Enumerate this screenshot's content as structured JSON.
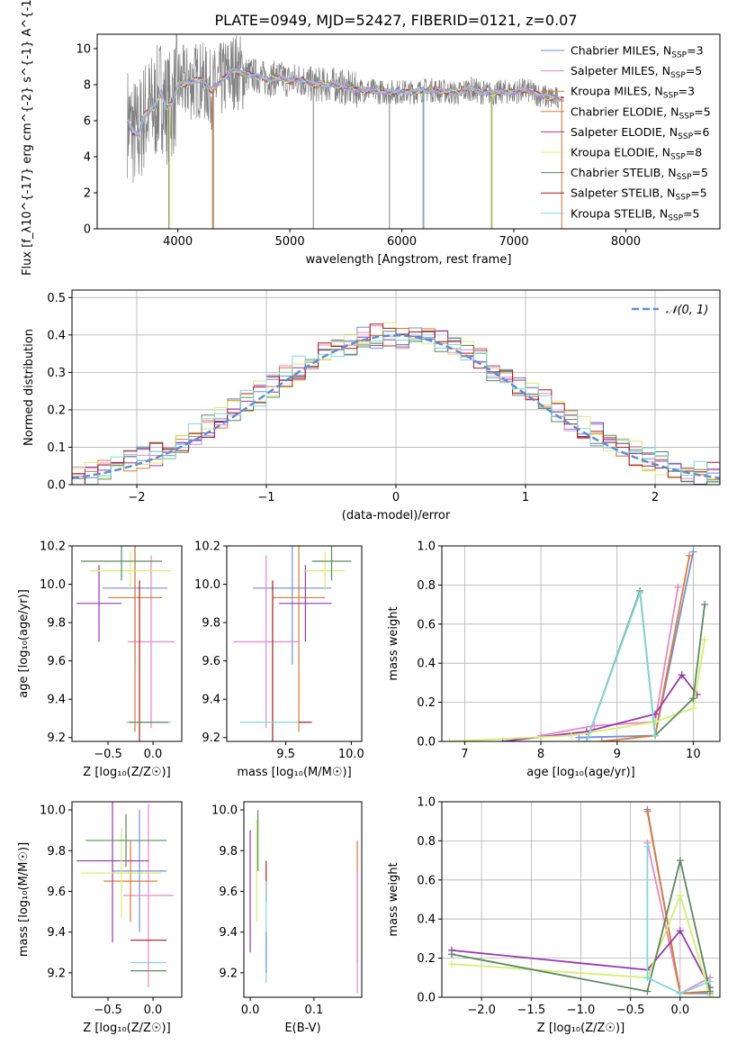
{
  "figure": {
    "title": "PLATE=0949, MJD=52427, FIBERID=0121, z=0.07"
  },
  "colors": {
    "chabrier_miles": "#6f8fe6",
    "salpeter_miles": "#e987c9",
    "kroupa_miles": "#e07a2d",
    "chabrier_elodie": "#e07a2d",
    "salpeter_elodie": "#9a36b0",
    "kroupa_elodie": "#d4f06a",
    "chabrier_stelib": "#5b8a5e",
    "salpeter_stelib": "#b01818",
    "kroupa_stelib": "#7fd8dc",
    "data": "#808080",
    "normal": "#5b8ddb"
  },
  "chart_data": [
    {
      "id": "spectrum",
      "type": "line",
      "xlabel": "wavelength [Angstrom, rest frame]",
      "ylabel": "Flux [f_λ10^{-17} erg cm^{-2} s^{-1} A^{-1}]",
      "xlim": [
        3280,
        8840
      ],
      "ylim": [
        0,
        10.8
      ],
      "xticks": [
        4000,
        5000,
        6000,
        7000,
        8000
      ],
      "yticks": [
        0,
        2,
        4,
        6,
        8,
        10
      ],
      "grid": false,
      "legend_position": "top-right",
      "legend": [
        {
          "label": "Chabrier MILES, N",
          "sub": "SSP",
          "eq": "=3",
          "color_key": "chabrier_miles"
        },
        {
          "label": "Salpeter MILES, N",
          "sub": "SSP",
          "eq": "=5",
          "color_key": "salpeter_miles"
        },
        {
          "label": "Kroupa MILES, N",
          "sub": "SSP",
          "eq": "=3",
          "color_key": "kroupa_miles"
        },
        {
          "label": "Chabrier ELODIE, N",
          "sub": "SSP",
          "eq": "=5",
          "color_key": "chabrier_elodie"
        },
        {
          "label": "Salpeter ELODIE, N",
          "sub": "SSP",
          "eq": "=6",
          "color_key": "salpeter_elodie"
        },
        {
          "label": "Kroupa ELODIE, N",
          "sub": "SSP",
          "eq": "=8",
          "color_key": "kroupa_elodie"
        },
        {
          "label": "Chabrier STELIB, N",
          "sub": "SSP",
          "eq": "=5",
          "color_key": "chabrier_stelib"
        },
        {
          "label": "Salpeter STELIB, N",
          "sub": "SSP",
          "eq": "=5",
          "color_key": "salpeter_stelib"
        },
        {
          "label": "Kroupa STELIB, N",
          "sub": "SSP",
          "eq": "=5",
          "color_key": "kroupa_stelib"
        }
      ],
      "model_continuum": {
        "x": [
          3550,
          3600,
          3650,
          3700,
          3750,
          3800,
          3850,
          3900,
          3950,
          4000,
          4100,
          4200,
          4300,
          4400,
          4500,
          4600,
          4700,
          4800,
          4900,
          5000,
          5100,
          5200,
          5300,
          5400,
          5500,
          5600,
          5700,
          5800,
          5900,
          6000,
          6100,
          6200,
          6300,
          6400,
          6500,
          6600,
          6700,
          6800,
          6900,
          7000,
          7100,
          7200,
          7300,
          7400
        ],
        "y": [
          6.0,
          5.4,
          5.2,
          6.3,
          6.6,
          6.8,
          7.6,
          6.7,
          6.9,
          8.0,
          8.1,
          8.3,
          7.7,
          8.3,
          8.8,
          8.6,
          8.5,
          8.3,
          8.4,
          8.2,
          8.3,
          8.0,
          8.0,
          8.0,
          7.8,
          7.7,
          7.7,
          7.6,
          7.6,
          7.6,
          7.6,
          7.7,
          7.7,
          7.6,
          7.5,
          7.8,
          7.6,
          7.5,
          7.6,
          7.6,
          7.7,
          7.5,
          7.3,
          7.2
        ]
      },
      "data_spikes_down": [
        {
          "x": 3920,
          "y": 0.0
        },
        {
          "x": 4310,
          "y": 0.0
        },
        {
          "x": 5210,
          "y": 0.0
        },
        {
          "x": 5890,
          "y": 0.0
        },
        {
          "x": 6190,
          "y": 0.0
        },
        {
          "x": 6800,
          "y": 0.0
        }
      ]
    },
    {
      "id": "residuals",
      "type": "line",
      "xlabel": "(data-model)/error",
      "ylabel": "Normed distribution",
      "xlim": [
        -2.5,
        2.5
      ],
      "ylim": [
        0,
        0.52
      ],
      "xticks": [
        -2,
        -1,
        0,
        1,
        2
      ],
      "yticks": [
        0.0,
        0.1,
        0.2,
        0.3,
        0.4,
        0.5
      ],
      "grid": true,
      "legend_position": "top-right",
      "legend": [
        {
          "label": "𝒩(0, 1)",
          "color_key": "normal",
          "style": "dashed"
        }
      ],
      "bin_width": 0.1
    },
    {
      "id": "age_vs_Z",
      "type": "scatter",
      "xlabel": "Z [log₁₀(Z/Z☉)]",
      "ylabel": "age  [log₁₀(age/yr)]",
      "xlim": [
        -0.9,
        0.32
      ],
      "ylim": [
        9.18,
        10.2
      ],
      "xticks": [
        -0.5,
        0.0
      ],
      "yticks": [
        9.2,
        9.4,
        9.6,
        9.8,
        10.0,
        10.2
      ],
      "grid": false,
      "series": [
        {
          "color_key": "chabrier_miles",
          "x": -0.2,
          "y": 9.98,
          "xerr": 0.36,
          "yerr": 0.4
        },
        {
          "color_key": "salpeter_miles",
          "x": -0.02,
          "y": 9.7,
          "xerr": 0.26,
          "yerr": 0.45
        },
        {
          "color_key": "kroupa_miles",
          "x": -0.2,
          "y": 9.93,
          "xerr": 0.3,
          "yerr": 0.7
        },
        {
          "color_key": "salpeter_elodie",
          "x": -0.6,
          "y": 9.9,
          "xerr": 0.25,
          "yerr": 0.2
        },
        {
          "color_key": "kroupa_elodie",
          "x": -0.25,
          "y": 10.07,
          "xerr": 0.45,
          "yerr": 0.1
        },
        {
          "color_key": "chabrier_stelib",
          "x": -0.35,
          "y": 10.12,
          "xerr": 0.45,
          "yerr": 0.1
        },
        {
          "color_key": "salpeter_stelib",
          "x": -0.15,
          "y": 9.6,
          "xerr": 0.0,
          "yerr": 0.42
        },
        {
          "color_key": "kroupa_stelib",
          "x": -0.05,
          "y": 9.28,
          "xerr": 0.25,
          "yerr": 0.0
        },
        {
          "color_key": "chabrier_stelib",
          "x": -0.05,
          "y": 9.28,
          "xerr": 0.22,
          "yerr": 0.0
        }
      ]
    },
    {
      "id": "age_vs_mass",
      "type": "scatter",
      "xlabel": "mass [log₁₀(M/M☉)]",
      "ylabel": "",
      "xlim": [
        9.05,
        10.08
      ],
      "ylim": [
        9.18,
        10.2
      ],
      "xticks": [
        9.5,
        10.0
      ],
      "yticks": [
        9.2,
        9.4,
        9.6,
        9.8,
        10.0,
        10.2
      ],
      "grid": false,
      "series": [
        {
          "color_key": "chabrier_miles",
          "x": 9.55,
          "y": 9.98,
          "xerr": 0.3,
          "yerr": 0.4
        },
        {
          "color_key": "salpeter_miles",
          "x": 9.35,
          "y": 9.7,
          "xerr": 0.25,
          "yerr": 0.45
        },
        {
          "color_key": "kroupa_miles",
          "x": 9.6,
          "y": 9.93,
          "xerr": 0.2,
          "yerr": 0.7
        },
        {
          "color_key": "salpeter_elodie",
          "x": 9.65,
          "y": 9.9,
          "xerr": 0.2,
          "yerr": 0.2
        },
        {
          "color_key": "kroupa_elodie",
          "x": 9.8,
          "y": 10.07,
          "xerr": 0.15,
          "yerr": 0.1
        },
        {
          "color_key": "chabrier_stelib",
          "x": 9.85,
          "y": 10.12,
          "xerr": 0.15,
          "yerr": 0.1
        },
        {
          "color_key": "salpeter_stelib",
          "x": 9.4,
          "y": 9.6,
          "xerr": 0.0,
          "yerr": 0.42
        },
        {
          "color_key": "kroupa_stelib",
          "x": 9.4,
          "y": 9.28,
          "xerr": 0.25,
          "yerr": 0.0
        },
        {
          "color_key": "salpeter_stelib",
          "x": 9.65,
          "y": 9.28,
          "xerr": 0.05,
          "yerr": 0.0
        }
      ]
    },
    {
      "id": "weight_vs_age",
      "type": "line",
      "xlabel": "age  [log₁₀(age/yr)]",
      "ylabel": "mass weight",
      "xlim": [
        6.7,
        10.35
      ],
      "ylim": [
        0,
        1.0
      ],
      "xticks": [
        7,
        8,
        9,
        10
      ],
      "yticks": [
        0.0,
        0.2,
        0.4,
        0.6,
        0.8,
        1.0
      ],
      "grid": true,
      "series": [
        {
          "color_key": "chabrier_miles",
          "x": [
            8.5,
            9.5,
            10.0
          ],
          "y": [
            0.02,
            0.03,
            0.97
          ]
        },
        {
          "color_key": "salpeter_miles",
          "x": [
            8.0,
            8.7,
            9.5,
            9.8
          ],
          "y": [
            0.03,
            0.08,
            0.1,
            0.79
          ]
        },
        {
          "color_key": "kroupa_miles",
          "x": [
            8.8,
            9.5,
            9.95
          ],
          "y": [
            0.0,
            0.03,
            0.95
          ]
        },
        {
          "color_key": "salpeter_elodie",
          "x": [
            7.5,
            8.6,
            9.5,
            9.85,
            10.05
          ],
          "y": [
            0.0,
            0.05,
            0.14,
            0.34,
            0.24
          ]
        },
        {
          "color_key": "kroupa_elodie",
          "x": [
            6.8,
            8.4,
            9.5,
            10.0,
            10.15
          ],
          "y": [
            0.0,
            0.03,
            0.1,
            0.17,
            0.52
          ]
        },
        {
          "color_key": "chabrier_stelib",
          "x": [
            8.6,
            9.3,
            9.5,
            10.0,
            10.15
          ],
          "y": [
            0.0,
            0.77,
            0.03,
            0.22,
            0.7
          ]
        },
        {
          "color_key": "kroupa_stelib",
          "x": [
            8.6,
            9.3,
            9.5
          ],
          "y": [
            0.0,
            0.76,
            0.03
          ]
        }
      ]
    },
    {
      "id": "mass_vs_Z",
      "type": "scatter",
      "xlabel": "Z [log₁₀(Z/Z☉)]",
      "ylabel": "mass [log₁₀(M/M☉)]",
      "xlim": [
        -0.9,
        0.32
      ],
      "ylim": [
        9.08,
        10.04
      ],
      "xticks": [
        -0.5,
        0.0
      ],
      "yticks": [
        9.2,
        9.4,
        9.6,
        9.8,
        10.0
      ],
      "grid": false,
      "series": [
        {
          "color_key": "chabrier_miles",
          "x": -0.15,
          "y": 9.7,
          "xerr": 0.3,
          "yerr": 0.3
        },
        {
          "color_key": "salpeter_miles",
          "x": -0.05,
          "y": 9.58,
          "xerr": 0.28,
          "yerr": 0.45
        },
        {
          "color_key": "kroupa_miles",
          "x": -0.25,
          "y": 9.65,
          "xerr": 0.3,
          "yerr": 0.2
        },
        {
          "color_key": "salpeter_elodie",
          "x": -0.45,
          "y": 9.75,
          "xerr": 0.4,
          "yerr": 0.4
        },
        {
          "color_key": "kroupa_elodie",
          "x": -0.35,
          "y": 9.69,
          "xerr": 0.45,
          "yerr": 0.22
        },
        {
          "color_key": "chabrier_stelib",
          "x": -0.3,
          "y": 9.85,
          "xerr": 0.45,
          "yerr": 0.13
        },
        {
          "color_key": "salpeter_stelib",
          "x": -0.05,
          "y": 9.36,
          "xerr": 0.2,
          "yerr": 0.0
        },
        {
          "color_key": "kroupa_stelib",
          "x": -0.05,
          "y": 9.25,
          "xerr": 0.2,
          "yerr": 0.0
        },
        {
          "color_key": "chabrier_stelib",
          "x": -0.05,
          "y": 9.21,
          "xerr": 0.2,
          "yerr": 0.0
        }
      ]
    },
    {
      "id": "mass_vs_ebv",
      "type": "scatter",
      "xlabel": "E(B-V)",
      "ylabel": "",
      "xlim": [
        -0.01,
        0.175
      ],
      "ylim": [
        9.08,
        10.04
      ],
      "xticks": [
        0.0,
        0.1
      ],
      "yticks": [
        9.2,
        9.4,
        9.6,
        9.8,
        10.0
      ],
      "grid": false,
      "series": [
        {
          "color_key": "salpeter_elodie",
          "x": 0.0,
          "y": 9.6,
          "xerr": 0.0,
          "yerr": 0.3
        },
        {
          "color_key": "kroupa_elodie",
          "x": 0.01,
          "y": 9.7,
          "xerr": 0.0,
          "yerr": 0.25
        },
        {
          "color_key": "chabrier_stelib",
          "x": 0.012,
          "y": 9.85,
          "xerr": 0.0,
          "yerr": 0.15
        },
        {
          "color_key": "salpeter_stelib",
          "x": 0.025,
          "y": 9.65,
          "xerr": 0.0,
          "yerr": 0.1
        },
        {
          "color_key": "kroupa_stelib",
          "x": 0.025,
          "y": 9.4,
          "xerr": 0.0,
          "yerr": 0.25
        },
        {
          "color_key": "chabrier_miles",
          "x": 0.025,
          "y": 9.3,
          "xerr": 0.0,
          "yerr": 0.1
        },
        {
          "color_key": "kroupa_miles",
          "x": 0.168,
          "y": 9.55,
          "xerr": 0.0,
          "yerr": 0.3
        },
        {
          "color_key": "salpeter_miles",
          "x": 0.168,
          "y": 9.4,
          "xerr": 0.0,
          "yerr": 0.3
        }
      ]
    },
    {
      "id": "weight_vs_Z",
      "type": "line",
      "xlabel": "Z [log₁₀(Z/Z☉)]",
      "ylabel": "mass weight",
      "xlim": [
        -2.4,
        0.4
      ],
      "ylim": [
        0,
        1.0
      ],
      "xticks": [
        -2.0,
        -1.5,
        -1.0,
        -0.5,
        0.0
      ],
      "yticks": [
        0.0,
        0.2,
        0.4,
        0.6,
        0.8,
        1.0
      ],
      "grid": true,
      "series": [
        {
          "color_key": "chabrier_miles",
          "x": [
            -0.33,
            0.0,
            0.3
          ],
          "y": [
            0.96,
            0.02,
            0.02
          ]
        },
        {
          "color_key": "salpeter_miles",
          "x": [
            -0.33,
            0.0,
            0.3
          ],
          "y": [
            0.79,
            0.02,
            0.1
          ]
        },
        {
          "color_key": "kroupa_miles",
          "x": [
            -0.33,
            0.0,
            0.3
          ],
          "y": [
            0.95,
            0.02,
            0.03
          ]
        },
        {
          "color_key": "salpeter_elodie",
          "x": [
            -2.3,
            -0.33,
            0.0,
            0.3
          ],
          "y": [
            0.24,
            0.14,
            0.34,
            0.05
          ]
        },
        {
          "color_key": "kroupa_elodie",
          "x": [
            -2.3,
            -0.33,
            0.0,
            0.3
          ],
          "y": [
            0.17,
            0.1,
            0.52,
            0.01
          ]
        },
        {
          "color_key": "chabrier_stelib",
          "x": [
            -2.3,
            -0.33,
            0.0,
            0.3
          ],
          "y": [
            0.22,
            0.03,
            0.7,
            0.03
          ]
        },
        {
          "color_key": "kroupa_stelib",
          "x": [
            -0.33,
            -0.33,
            0.0,
            0.3
          ],
          "y": [
            0.77,
            0.1,
            0.02,
            0.08
          ]
        }
      ]
    }
  ]
}
